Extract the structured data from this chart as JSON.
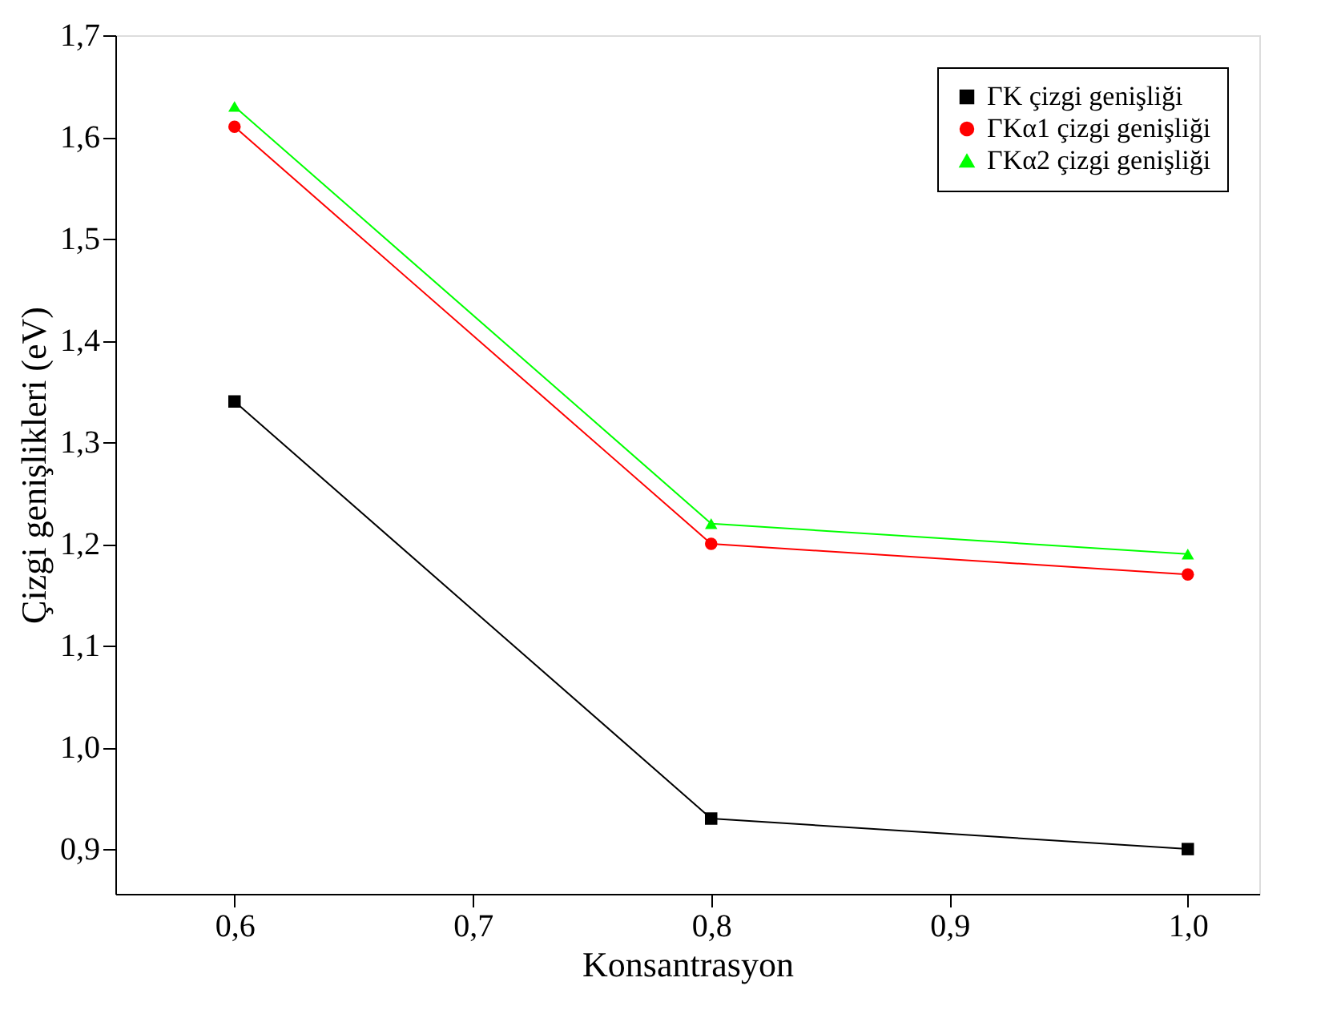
{
  "chart_data": {
    "type": "line",
    "xlabel": "Konsantrasyon",
    "ylabel": "Çizgi genişlikleri (eV)",
    "x": [
      0.6,
      0.8,
      1.0
    ],
    "series": [
      {
        "name": "ΓK çizgi genişliği",
        "color": "#000000",
        "marker": "square",
        "values": [
          1.34,
          0.93,
          0.9
        ]
      },
      {
        "name": "ΓKα1 çizgi genişliği",
        "color": "#ff0000",
        "marker": "circle",
        "values": [
          1.61,
          1.2,
          1.17
        ]
      },
      {
        "name": "ΓKα2 çizgi genişliği",
        "color": "#00ff00",
        "marker": "triangle",
        "values": [
          1.63,
          1.22,
          1.19
        ]
      }
    ],
    "xlim": [
      0.55,
      1.03
    ],
    "xticks": [
      {
        "value": 0.6,
        "label": "0,6"
      },
      {
        "value": 0.7,
        "label": "0,7"
      },
      {
        "value": 0.8,
        "label": "0,8"
      },
      {
        "value": 0.9,
        "label": "0,9"
      },
      {
        "value": 1.0,
        "label": "1,0"
      }
    ],
    "ylim": [
      0.856,
      1.7
    ],
    "yticks": [
      {
        "value": 0.9,
        "label": "0,9"
      },
      {
        "value": 1.0,
        "label": "1,0"
      },
      {
        "value": 1.1,
        "label": "1,1"
      },
      {
        "value": 1.2,
        "label": "1,2"
      },
      {
        "value": 1.3,
        "label": "1,3"
      },
      {
        "value": 1.4,
        "label": "1,4"
      },
      {
        "value": 1.5,
        "label": "1,5"
      },
      {
        "value": 1.6,
        "label": "1,6"
      },
      {
        "value": 1.7,
        "label": "1,7"
      }
    ],
    "legend": "top right",
    "grid": false
  }
}
